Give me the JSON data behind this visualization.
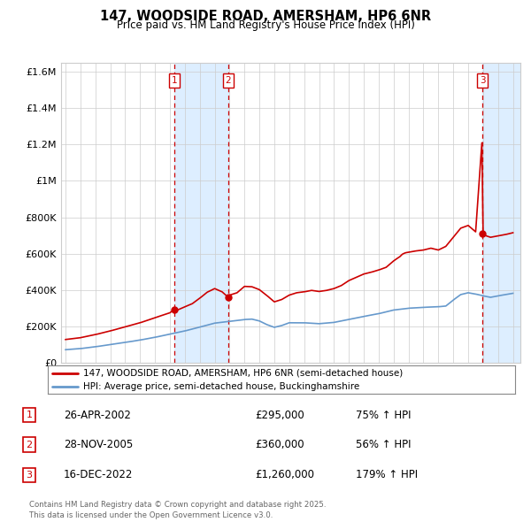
{
  "title_line1": "147, WOODSIDE ROAD, AMERSHAM, HP6 6NR",
  "title_line2": "Price paid vs. HM Land Registry's House Price Index (HPI)",
  "xlim": [
    1994.7,
    2025.5
  ],
  "ylim": [
    0,
    1650000
  ],
  "yticks": [
    0,
    200000,
    400000,
    600000,
    800000,
    1000000,
    1200000,
    1400000,
    1600000
  ],
  "transactions": [
    {
      "num": 1,
      "date": "26-APR-2002",
      "price": 295000,
      "price_str": "£295,000",
      "pct": "75%",
      "direction": "↑",
      "year": 2002.31
    },
    {
      "num": 2,
      "date": "28-NOV-2005",
      "price": 360000,
      "price_str": "£360,000",
      "pct": "56%",
      "direction": "↑",
      "year": 2005.91
    },
    {
      "num": 3,
      "date": "16-DEC-2022",
      "price": 1260000,
      "price_str": "£1,260,000",
      "pct": "179%",
      "direction": "↑",
      "year": 2022.96
    }
  ],
  "legend_line1": "147, WOODSIDE ROAD, AMERSHAM, HP6 6NR (semi-detached house)",
  "legend_line2": "HPI: Average price, semi-detached house, Buckinghamshire",
  "footer": "Contains HM Land Registry data © Crown copyright and database right 2025.\nThis data is licensed under the Open Government Licence v3.0.",
  "price_color": "#cc0000",
  "hpi_color": "#6699cc",
  "shade_color": "#ddeeff",
  "grid_color": "#cccccc",
  "bg_color": "#ffffff"
}
